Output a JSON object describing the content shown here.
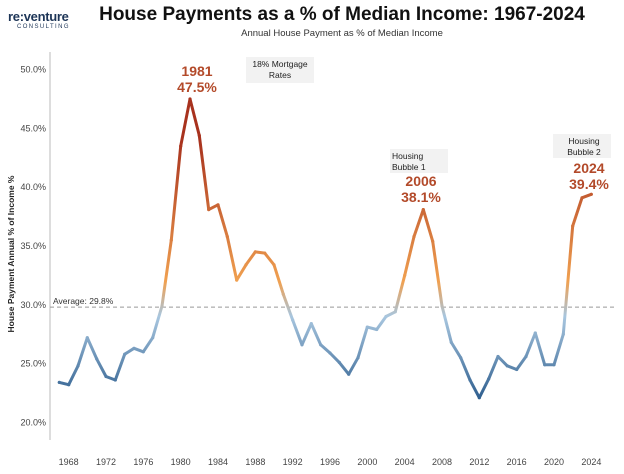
{
  "logo": {
    "main": "re:venture",
    "sub": "CONSULTING"
  },
  "chart_data": {
    "type": "line",
    "title": "House Payments as a % of Median Income: 1967-2024",
    "subtitle": "Annual House Payment as % of Median Income",
    "xlabel": "",
    "ylabel": "House Payment Annual % of Income %",
    "ylim": [
      18.5,
      51.5
    ],
    "xlim": [
      1966,
      2026
    ],
    "yticks": [
      20,
      25,
      30,
      35,
      40,
      45,
      50
    ],
    "ytick_labels": [
      "20.0%",
      "25.0%",
      "30.0%",
      "35.0%",
      "40.0%",
      "45.0%",
      "50.0%"
    ],
    "xticks": [
      1968,
      1972,
      1976,
      1980,
      1984,
      1988,
      1992,
      1996,
      2000,
      2004,
      2008,
      2012,
      2016,
      2020,
      2024
    ],
    "grid": false,
    "average": {
      "value": 29.8,
      "label": "Average: 29.8%"
    },
    "x": [
      1967,
      1968,
      1969,
      1970,
      1971,
      1972,
      1973,
      1974,
      1975,
      1976,
      1977,
      1978,
      1979,
      1980,
      1981,
      1982,
      1983,
      1984,
      1985,
      1986,
      1987,
      1988,
      1989,
      1990,
      1991,
      1992,
      1993,
      1994,
      1995,
      1996,
      1997,
      1998,
      1999,
      2000,
      2001,
      2002,
      2003,
      2004,
      2005,
      2006,
      2007,
      2008,
      2009,
      2010,
      2011,
      2012,
      2013,
      2014,
      2015,
      2016,
      2017,
      2018,
      2019,
      2020,
      2021,
      2022,
      2023,
      2024
    ],
    "values": [
      23.4,
      23.2,
      24.8,
      27.2,
      25.4,
      23.9,
      23.6,
      25.8,
      26.3,
      26.0,
      27.2,
      29.9,
      35.5,
      43.5,
      47.5,
      44.4,
      38.1,
      38.5,
      35.8,
      32.1,
      33.4,
      34.5,
      34.4,
      33.4,
      30.9,
      28.7,
      26.6,
      28.4,
      26.6,
      25.9,
      25.1,
      24.1,
      25.5,
      28.1,
      27.9,
      29.0,
      29.4,
      32.5,
      35.8,
      38.1,
      35.4,
      29.9,
      26.8,
      25.5,
      23.6,
      22.1,
      23.7,
      25.6,
      24.8,
      24.5,
      25.6,
      27.6,
      24.9,
      24.9,
      27.5,
      36.7,
      39.1,
      39.4
    ],
    "annotations": [
      {
        "note": [
          "18% Mortgage",
          "Rates"
        ],
        "year": "1981",
        "value": "47.5%"
      },
      {
        "note": [
          "Housing",
          "Bubble 1"
        ],
        "year": "2006",
        "value": "38.1%"
      },
      {
        "note": [
          "Housing",
          "Bubble 2"
        ],
        "year": "2024",
        "value": "39.4%"
      }
    ],
    "colors": {
      "low": "#2f5f8f",
      "mid": "#a8c6df",
      "mid_high": "#f0a050",
      "high": "#a8321e",
      "avg_line": "#999999"
    }
  }
}
